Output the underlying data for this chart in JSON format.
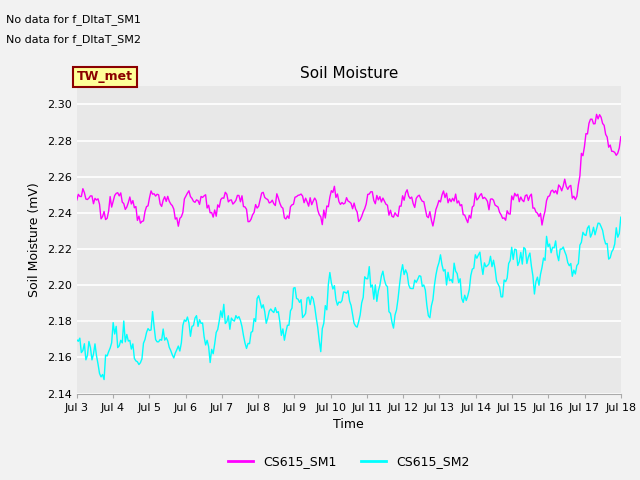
{
  "title": "Soil Moisture",
  "ylabel": "Soil Moisture (mV)",
  "xlabel": "Time",
  "ylim": [
    2.14,
    2.31
  ],
  "yticks": [
    2.14,
    2.16,
    2.18,
    2.2,
    2.22,
    2.24,
    2.26,
    2.28,
    2.3
  ],
  "xtick_labels": [
    "Jul 3",
    "Jul 4",
    "Jul 5",
    "Jul 6",
    "Jul 7",
    "Jul 8",
    "Jul 9",
    "Jul 10",
    "Jul 11",
    "Jul 12",
    "Jul 13",
    "Jul 14",
    "Jul 15",
    "Jul 16",
    "Jul 17",
    "Jul 18"
  ],
  "no_data_text1": "No data for f_DltaT_SM1",
  "no_data_text2": "No data for f_DltaT_SM2",
  "tw_met_label": "TW_met",
  "legend_label1": "CS615_SM1",
  "legend_label2": "CS615_SM2",
  "color_sm1": "#FF00FF",
  "color_sm2": "#00FFFF",
  "plot_bg_color": "#E8E8E8",
  "fig_bg_color": "#F2F2F2",
  "grid_color": "#FFFFFF",
  "tw_met_bg": "#FFFF99",
  "tw_met_text_color": "#8B0000",
  "tw_met_border": "#8B0000",
  "title_fontsize": 11,
  "label_fontsize": 9,
  "tick_fontsize": 8,
  "legend_fontsize": 9,
  "nodata_fontsize": 8
}
